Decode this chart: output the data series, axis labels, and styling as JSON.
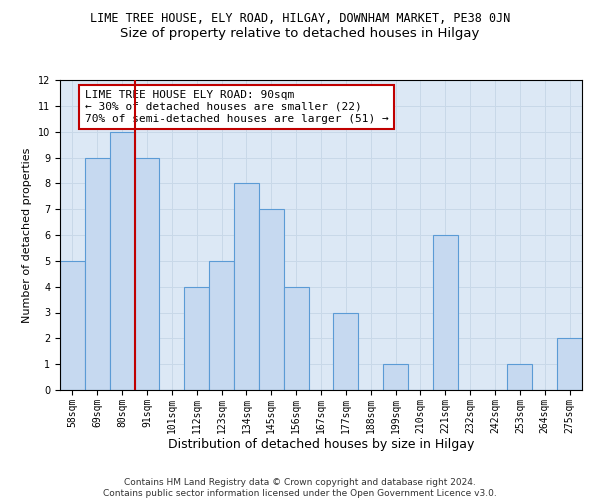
{
  "title": "LIME TREE HOUSE, ELY ROAD, HILGAY, DOWNHAM MARKET, PE38 0JN",
  "subtitle": "Size of property relative to detached houses in Hilgay",
  "xlabel": "Distribution of detached houses by size in Hilgay",
  "ylabel": "Number of detached properties",
  "categories": [
    "58sqm",
    "69sqm",
    "80sqm",
    "91sqm",
    "101sqm",
    "112sqm",
    "123sqm",
    "134sqm",
    "145sqm",
    "156sqm",
    "167sqm",
    "177sqm",
    "188sqm",
    "199sqm",
    "210sqm",
    "221sqm",
    "232sqm",
    "242sqm",
    "253sqm",
    "264sqm",
    "275sqm"
  ],
  "values": [
    5,
    9,
    10,
    9,
    0,
    4,
    5,
    8,
    7,
    4,
    0,
    3,
    0,
    1,
    0,
    6,
    0,
    0,
    1,
    0,
    2
  ],
  "bar_color": "#c6d9f0",
  "bar_edge_color": "#5b9bd5",
  "subject_line_color": "#c00000",
  "annotation_text": "LIME TREE HOUSE ELY ROAD: 90sqm\n← 30% of detached houses are smaller (22)\n70% of semi-detached houses are larger (51) →",
  "annotation_box_color": "white",
  "annotation_box_edge_color": "#c00000",
  "ylim": [
    0,
    12
  ],
  "yticks": [
    0,
    1,
    2,
    3,
    4,
    5,
    6,
    7,
    8,
    9,
    10,
    11,
    12
  ],
  "grid_color": "#c8d8e8",
  "bg_color": "#dce8f5",
  "footer": "Contains HM Land Registry data © Crown copyright and database right 2024.\nContains public sector information licensed under the Open Government Licence v3.0.",
  "title_fontsize": 8.5,
  "subtitle_fontsize": 9.5,
  "xlabel_fontsize": 9,
  "ylabel_fontsize": 8,
  "tick_fontsize": 7,
  "annotation_fontsize": 8,
  "footer_fontsize": 6.5
}
